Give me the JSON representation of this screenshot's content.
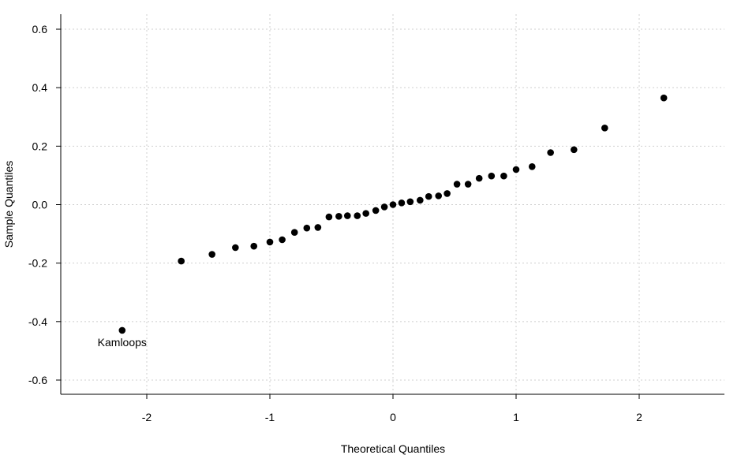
{
  "chart_data": {
    "type": "scatter",
    "title": "",
    "xlabel": "Theoretical Quantiles",
    "ylabel": "Sample Quantiles",
    "xlim": [
      -2.7,
      2.7
    ],
    "ylim": [
      -0.65,
      0.65
    ],
    "x_ticks": [
      -2,
      -1,
      0,
      1,
      2
    ],
    "x_tick_labels": [
      "-2",
      "-1",
      "0",
      "1",
      "2"
    ],
    "y_ticks": [
      -0.6,
      -0.4,
      -0.2,
      0.0,
      0.2,
      0.4,
      0.6
    ],
    "y_tick_labels": [
      "-0.6",
      "-0.4",
      "-0.2",
      "0.0",
      "0.2",
      "0.4",
      "0.6"
    ],
    "grid": true,
    "point_color": "#000000",
    "points": [
      {
        "x": -2.2,
        "y": -0.43
      },
      {
        "x": -1.72,
        "y": -0.193
      },
      {
        "x": -1.47,
        "y": -0.17
      },
      {
        "x": -1.28,
        "y": -0.147
      },
      {
        "x": -1.13,
        "y": -0.142
      },
      {
        "x": -1.0,
        "y": -0.128
      },
      {
        "x": -0.9,
        "y": -0.12
      },
      {
        "x": -0.8,
        "y": -0.095
      },
      {
        "x": -0.7,
        "y": -0.08
      },
      {
        "x": -0.61,
        "y": -0.078
      },
      {
        "x": -0.52,
        "y": -0.042
      },
      {
        "x": -0.44,
        "y": -0.04
      },
      {
        "x": -0.37,
        "y": -0.038
      },
      {
        "x": -0.29,
        "y": -0.038
      },
      {
        "x": -0.22,
        "y": -0.03
      },
      {
        "x": -0.14,
        "y": -0.02
      },
      {
        "x": -0.07,
        "y": -0.008
      },
      {
        "x": 0.0,
        "y": 0.0
      },
      {
        "x": 0.07,
        "y": 0.006
      },
      {
        "x": 0.14,
        "y": 0.01
      },
      {
        "x": 0.22,
        "y": 0.015
      },
      {
        "x": 0.29,
        "y": 0.028
      },
      {
        "x": 0.37,
        "y": 0.03
      },
      {
        "x": 0.44,
        "y": 0.038
      },
      {
        "x": 0.52,
        "y": 0.07
      },
      {
        "x": 0.61,
        "y": 0.07
      },
      {
        "x": 0.7,
        "y": 0.09
      },
      {
        "x": 0.8,
        "y": 0.098
      },
      {
        "x": 0.9,
        "y": 0.098
      },
      {
        "x": 1.0,
        "y": 0.12
      },
      {
        "x": 1.13,
        "y": 0.13
      },
      {
        "x": 1.28,
        "y": 0.178
      },
      {
        "x": 1.47,
        "y": 0.188
      },
      {
        "x": 1.72,
        "y": 0.262
      },
      {
        "x": 2.2,
        "y": 0.365
      }
    ],
    "annotations": [
      {
        "text": "Kamloops",
        "x": -2.2,
        "y": -0.43
      }
    ]
  }
}
